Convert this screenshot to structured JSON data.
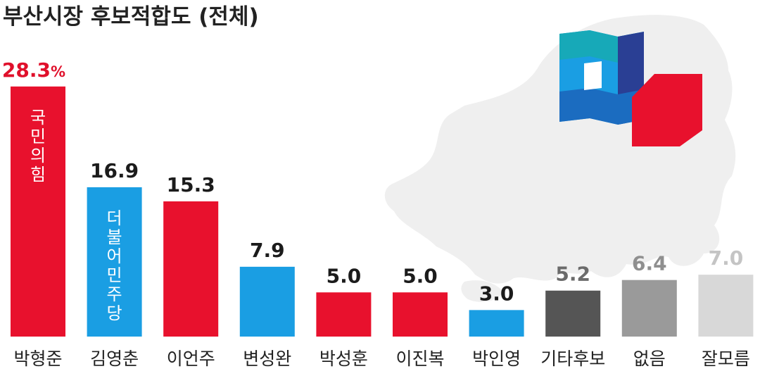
{
  "chart_data": {
    "type": "bar",
    "title": "부산시장 후보적합도 (전체)",
    "unit": "%",
    "categories": [
      "박형준",
      "김영춘",
      "이언주",
      "변성완",
      "박성훈",
      "이진복",
      "박인영",
      "기타후보",
      "없음",
      "잘모름"
    ],
    "value_labels": [
      "28.3",
      "16.9",
      "15.3",
      "7.9",
      "5.0",
      "5.0",
      "3.0",
      "5.2",
      "6.4",
      "7.0"
    ],
    "values": [
      28.3,
      16.9,
      15.3,
      7.9,
      5.0,
      5.0,
      3.0,
      5.2,
      6.4,
      7.0
    ],
    "bar_colors": [
      "#e8112d",
      "#1a9ee3",
      "#e8112d",
      "#1a9ee3",
      "#e8112d",
      "#e8112d",
      "#1a9ee3",
      "#555555",
      "#9a9a9a",
      "#d8d8d8"
    ],
    "label_colors": [
      "#e0102b",
      "#1b1b1b",
      "#1b1b1b",
      "#1b1b1b",
      "#1b1b1b",
      "#1b1b1b",
      "#1b1b1b",
      "#6b6b6b",
      "#8f8f8f",
      "#c4c4c4"
    ],
    "bar_annotations": [
      "국민의힘",
      "더불어민주당",
      "",
      "",
      "",
      "",
      "",
      "",
      "",
      ""
    ],
    "ylim": [
      0,
      30
    ]
  },
  "colors": {
    "map_fill": "#efefef",
    "red_party": "#e8112d",
    "blue_party": "#1a9ee3"
  }
}
